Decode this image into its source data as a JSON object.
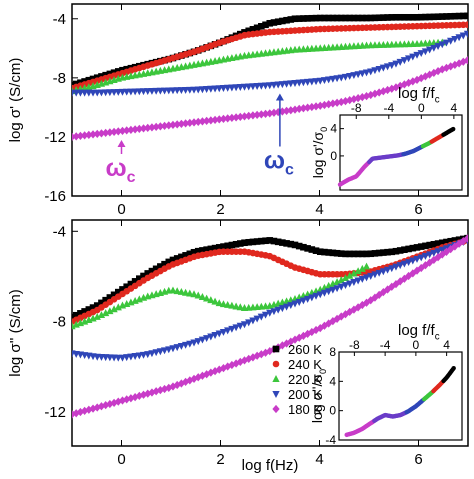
{
  "chart_data": [
    {
      "type": "scatter",
      "panel": "top",
      "ylabel": "log σ' (S/cm)",
      "xlim": [
        -1,
        7
      ],
      "ylim": [
        -16,
        -3
      ],
      "yticks": [
        -4,
        -8,
        -12,
        -16
      ],
      "xticks": [
        0,
        2,
        4,
        6
      ],
      "grid": false,
      "series": [
        {
          "name": "260 K",
          "color": "#000000",
          "marker": "square",
          "x": [
            -1,
            -0.5,
            0,
            0.5,
            1,
            1.5,
            2,
            2.5,
            3,
            3.5,
            4,
            4.5,
            5,
            5.5,
            6,
            6.5,
            7
          ],
          "y": [
            -8.5,
            -8.0,
            -7.5,
            -7.1,
            -6.7,
            -6.2,
            -5.6,
            -4.9,
            -4.3,
            -4.0,
            -3.95,
            -3.95,
            -3.95,
            -3.9,
            -3.9,
            -3.85,
            -3.8
          ]
        },
        {
          "name": "240 K",
          "color": "#e0281e",
          "marker": "circle",
          "x": [
            -1,
            -0.5,
            0,
            0.5,
            1,
            1.5,
            2,
            2.5,
            3,
            3.5,
            4,
            4.5,
            5,
            5.5,
            6,
            6.5,
            7
          ],
          "y": [
            -8.7,
            -8.2,
            -7.7,
            -7.2,
            -6.7,
            -6.2,
            -5.6,
            -5.1,
            -4.9,
            -4.8,
            -4.7,
            -4.65,
            -4.6,
            -4.55,
            -4.5,
            -4.45,
            -4.4
          ]
        },
        {
          "name": "220 K",
          "color": "#3cc63c",
          "marker": "triangle-up",
          "x": [
            -1,
            -0.5,
            0,
            0.5,
            1,
            1.5,
            2,
            2.5,
            3,
            3.5,
            4,
            4.5,
            5,
            5.5,
            6,
            6.5
          ],
          "y": [
            -8.9,
            -8.5,
            -8.0,
            -7.7,
            -7.4,
            -7.1,
            -6.8,
            -6.5,
            -6.3,
            -6.1,
            -6.0,
            -5.9,
            -5.8,
            -5.75,
            -5.7,
            -5.6
          ]
        },
        {
          "name": "200 K",
          "color": "#2f46b8",
          "marker": "triangle-down",
          "x": [
            -1,
            -0.5,
            0,
            0.5,
            1,
            1.5,
            2,
            2.5,
            3,
            3.5,
            4,
            4.5,
            5,
            5.5,
            6,
            6.5,
            7
          ],
          "y": [
            -9.0,
            -9.0,
            -8.95,
            -8.9,
            -8.85,
            -8.8,
            -8.7,
            -8.6,
            -8.5,
            -8.35,
            -8.2,
            -7.95,
            -7.6,
            -7.1,
            -6.4,
            -5.7,
            -5.0
          ]
        },
        {
          "name": "180 K",
          "color": "#c83cc8",
          "marker": "diamond",
          "x": [
            -1,
            -0.5,
            0,
            0.5,
            1,
            1.5,
            2,
            2.5,
            3,
            3.5,
            4,
            4.5,
            5,
            5.5,
            6,
            6.5,
            7
          ],
          "y": [
            -12.0,
            -11.8,
            -11.6,
            -11.4,
            -11.2,
            -11.0,
            -10.8,
            -10.6,
            -10.4,
            -10.15,
            -9.9,
            -9.6,
            -9.2,
            -8.7,
            -8.1,
            -7.4,
            -6.8
          ]
        }
      ],
      "annotations": [
        {
          "text": "ω",
          "subscript": "c",
          "color": "#c83cc8",
          "points_to": {
            "x": 0,
            "y": -11.6
          }
        },
        {
          "text": "ω",
          "subscript": "c",
          "color": "#2f46b8",
          "points_to": {
            "x": 3.2,
            "y": -8.45
          }
        }
      ],
      "inset": {
        "xlabel": "log f/f",
        "xlabel_subscript": "c",
        "ylabel": "log σ'/σ",
        "ylabel_subscript": "0",
        "xticks": [
          -8,
          -4,
          0,
          4
        ],
        "yticks": [
          0,
          4
        ],
        "xlim": [
          -10,
          5
        ],
        "ylim": [
          -5,
          6
        ],
        "x": [
          -10,
          -9,
          -8,
          -7,
          -6,
          -5,
          -4,
          -3,
          -2,
          -1,
          0,
          1,
          2,
          3,
          4
        ],
        "y": [
          -4.2,
          -3.5,
          -3.0,
          -1.6,
          -0.4,
          -0.25,
          -0.1,
          0.05,
          0.3,
          0.7,
          1.3,
          1.9,
          2.6,
          3.3,
          4.0
        ]
      }
    },
    {
      "type": "scatter",
      "panel": "bottom",
      "xlabel": "log f(Hz)",
      "ylabel": "log σ'' (S/cm)",
      "xlim": [
        -1,
        7
      ],
      "ylim": [
        -13.5,
        -3.5
      ],
      "yticks": [
        -4,
        -8,
        -12
      ],
      "xticks": [
        0,
        2,
        4,
        6
      ],
      "grid": false,
      "series": [
        {
          "name": "260 K",
          "color": "#000000",
          "marker": "square",
          "x": [
            -1,
            -0.5,
            0,
            0.5,
            1,
            1.5,
            2,
            2.5,
            3,
            3.5,
            4,
            4.5,
            5,
            5.5,
            6,
            6.5,
            7
          ],
          "y": [
            -7.8,
            -7.3,
            -6.6,
            -5.9,
            -5.3,
            -4.9,
            -4.7,
            -4.5,
            -4.4,
            -4.6,
            -4.9,
            -5.0,
            -5.0,
            -4.9,
            -4.7,
            -4.5,
            -4.3
          ]
        },
        {
          "name": "240 K",
          "color": "#e0281e",
          "marker": "circle",
          "x": [
            -1,
            -0.5,
            0,
            0.5,
            1,
            1.5,
            2,
            2.5,
            3,
            3.5,
            4,
            4.5,
            5,
            5.5,
            6,
            6.5,
            7
          ],
          "y": [
            -8.0,
            -7.5,
            -6.8,
            -6.1,
            -5.5,
            -5.1,
            -4.9,
            -4.9,
            -5.1,
            -5.6,
            -5.9,
            -5.9,
            -5.8,
            -5.5,
            -5.1,
            -4.7,
            -4.4
          ]
        },
        {
          "name": "220 K",
          "color": "#3cc63c",
          "marker": "triangle-up",
          "x": [
            -1,
            -0.5,
            0,
            0.5,
            1,
            1.5,
            2,
            2.5,
            3,
            3.5,
            4,
            4.5,
            5
          ],
          "y": [
            -8.2,
            -7.8,
            -7.3,
            -6.9,
            -6.6,
            -6.8,
            -7.2,
            -7.4,
            -7.3,
            -7.0,
            -6.6,
            -6.1,
            -5.5
          ]
        },
        {
          "name": "200 K",
          "color": "#2f46b8",
          "marker": "triangle-down",
          "x": [
            -1,
            -0.5,
            0,
            0.5,
            1,
            1.5,
            2,
            2.5,
            3,
            3.5,
            4,
            4.5,
            5,
            5.5,
            6,
            6.5,
            7
          ],
          "y": [
            -9.4,
            -9.55,
            -9.6,
            -9.45,
            -9.2,
            -8.9,
            -8.5,
            -8.1,
            -7.6,
            -7.2,
            -6.8,
            -6.4,
            -6.0,
            -5.6,
            -5.2,
            -4.8,
            -4.4
          ]
        },
        {
          "name": "180 K",
          "color": "#c83cc8",
          "marker": "diamond",
          "x": [
            -1,
            -0.5,
            0,
            0.5,
            1,
            1.5,
            2,
            2.5,
            3,
            3.5,
            4,
            4.5,
            5,
            5.5,
            6,
            6.5,
            7
          ],
          "y": [
            -12.1,
            -11.8,
            -11.5,
            -11.2,
            -10.9,
            -10.5,
            -10.1,
            -9.7,
            -9.3,
            -8.8,
            -8.3,
            -7.7,
            -7.1,
            -6.4,
            -5.7,
            -5.0,
            -4.3
          ]
        }
      ],
      "legend": {
        "placement": "lower-center",
        "entries": [
          {
            "label": "260 K",
            "color": "#000000",
            "marker": "square"
          },
          {
            "label": "240 K",
            "color": "#e0281e",
            "marker": "circle"
          },
          {
            "label": "220 K",
            "color": "#3cc63c",
            "marker": "triangle-up"
          },
          {
            "label": "200 K",
            "color": "#2f46b8",
            "marker": "triangle-down"
          },
          {
            "label": "180 K",
            "color": "#c83cc8",
            "marker": "diamond"
          }
        ]
      },
      "inset": {
        "xlabel": "log f/f",
        "xlabel_subscript": "c",
        "ylabel": "log σ''/σ",
        "ylabel_subscript": "0",
        "xticks": [
          -8,
          -4,
          0,
          4
        ],
        "yticks": [
          -4,
          0,
          4,
          8
        ],
        "xlim": [
          -10,
          6
        ],
        "ylim": [
          -4,
          8
        ],
        "x": [
          -9,
          -8,
          -7,
          -6,
          -5,
          -4,
          -3,
          -2,
          -1,
          0,
          1,
          2,
          3,
          4,
          5
        ],
        "y": [
          -3.3,
          -3.0,
          -2.5,
          -1.8,
          -1.1,
          -0.6,
          -0.8,
          -0.6,
          -0.1,
          0.6,
          1.5,
          2.4,
          3.4,
          4.5,
          5.9
        ]
      }
    }
  ]
}
